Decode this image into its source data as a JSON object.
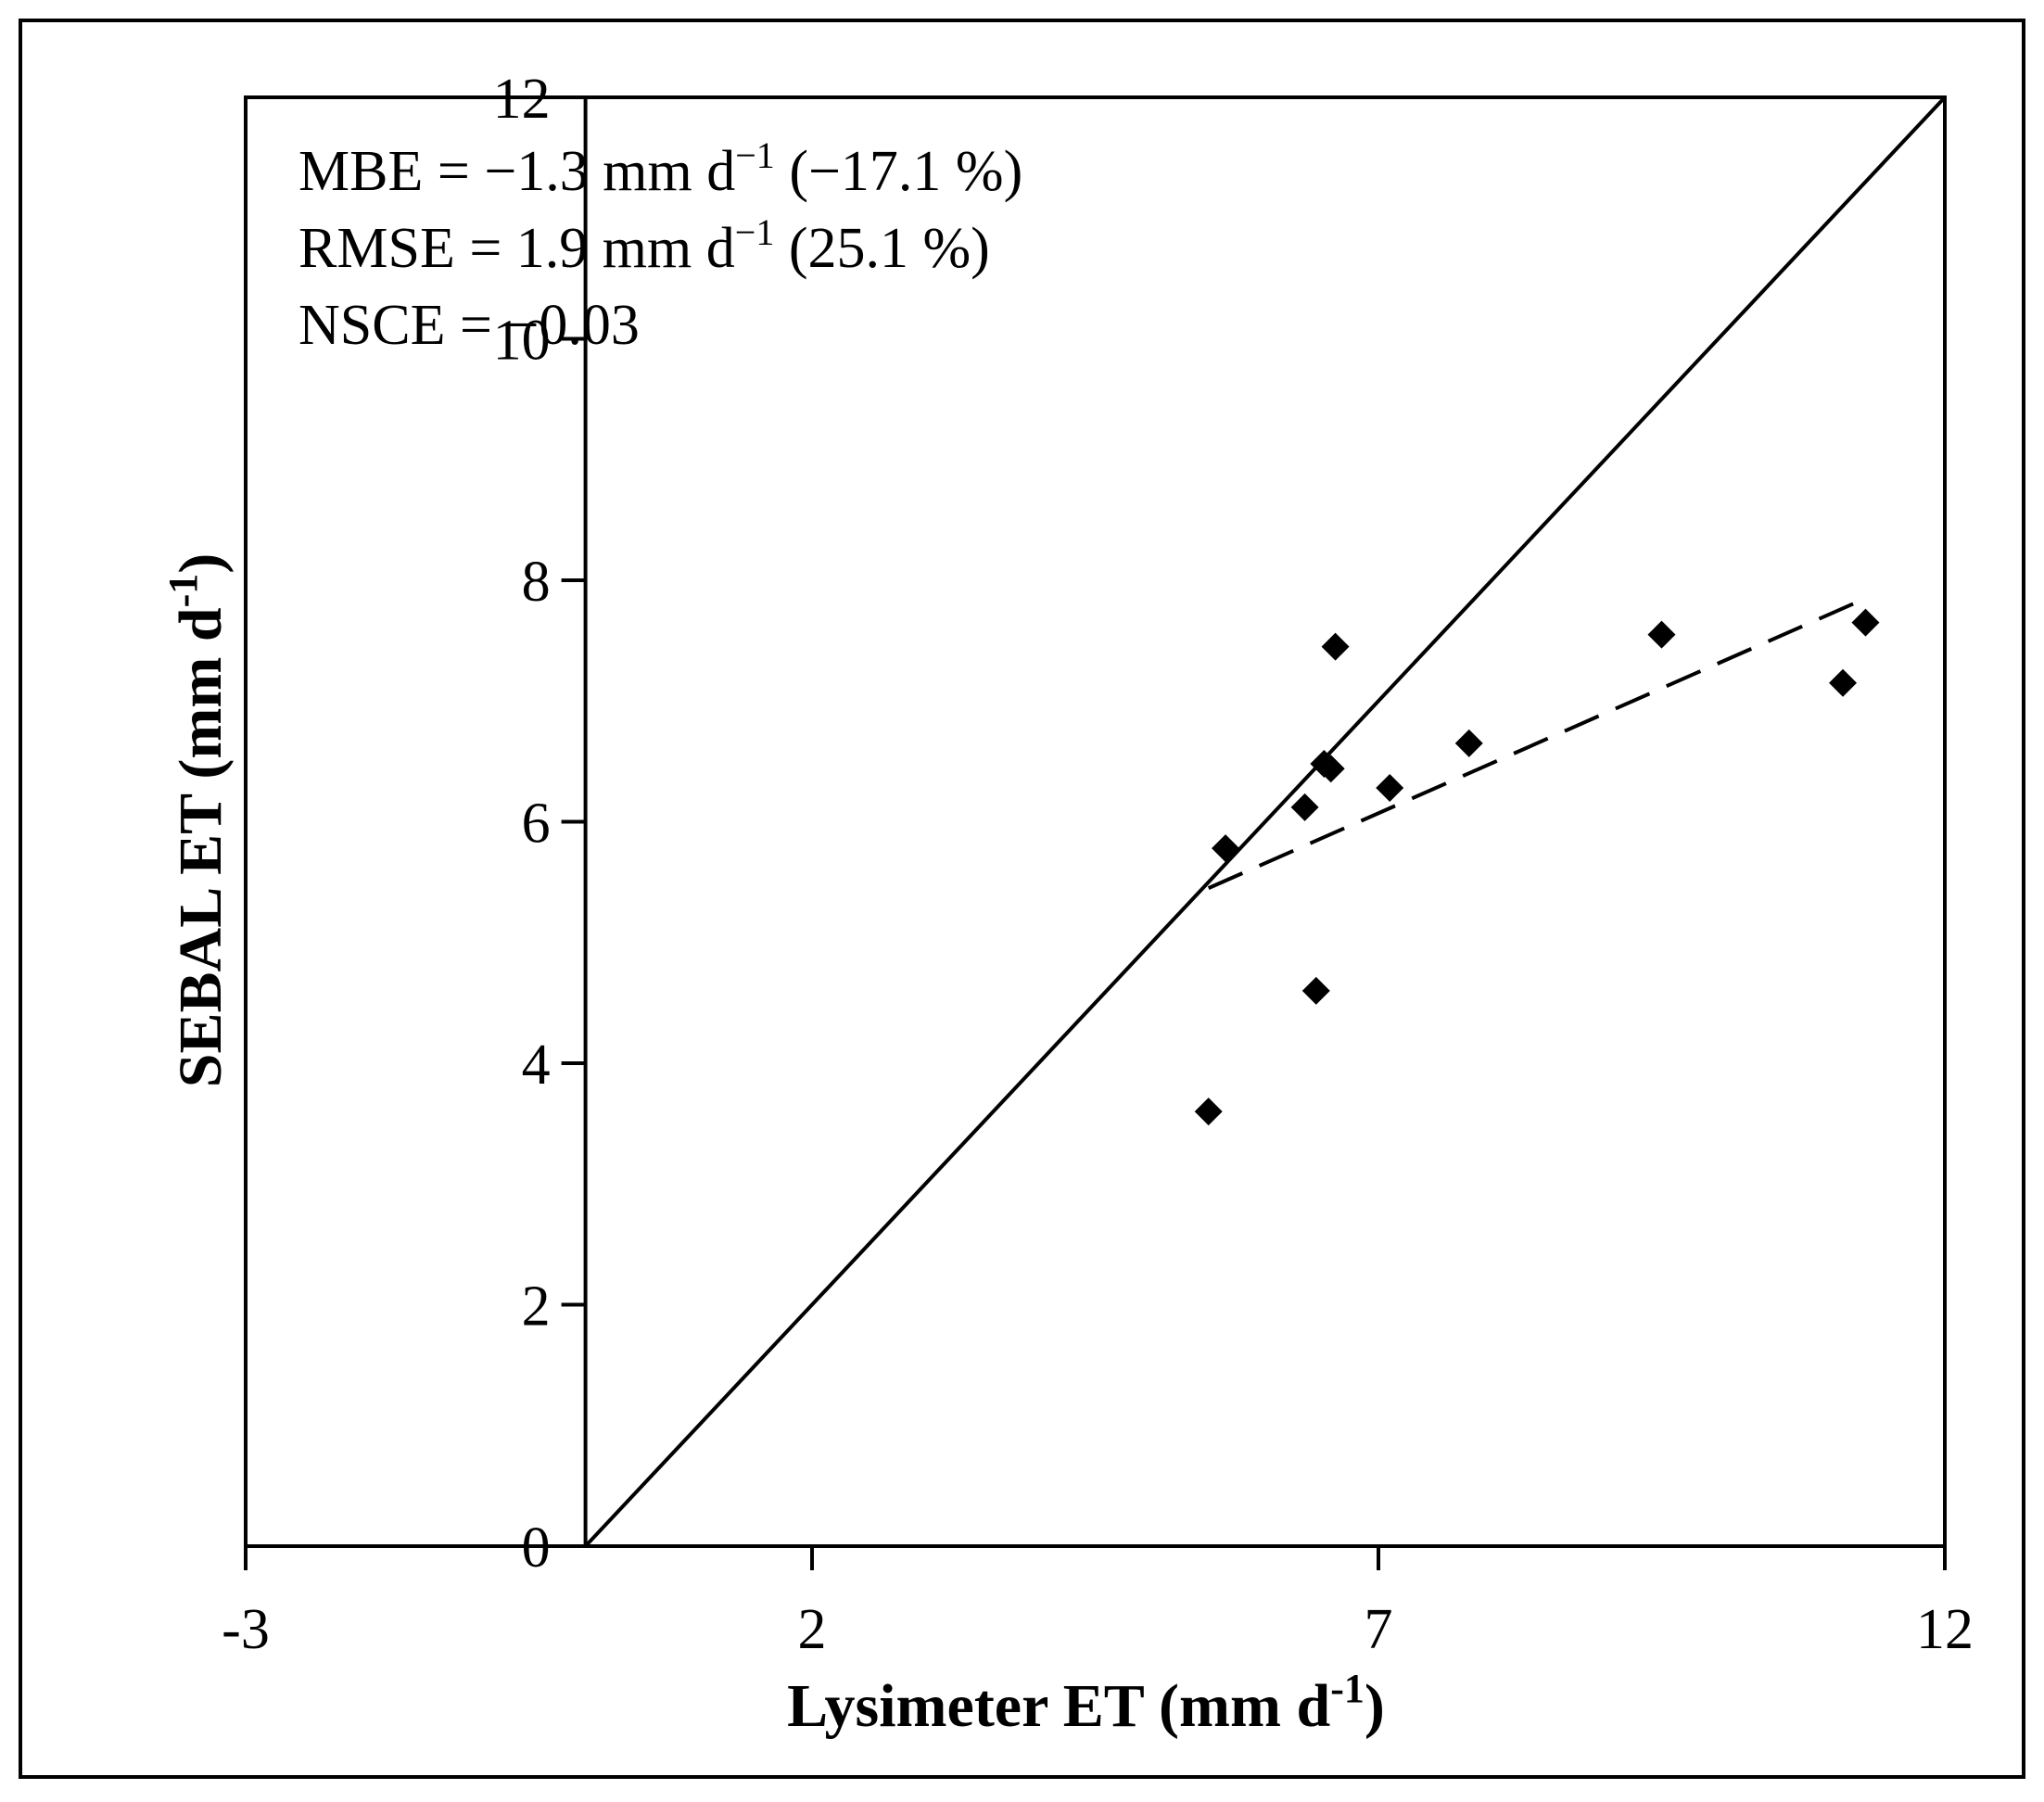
{
  "chart_data": {
    "type": "scatter",
    "title": "",
    "xlabel": "Lysimeter ET (mm d",
    "xlabel_sup": "-1",
    "xlabel_close": ")",
    "ylabel": "SEBAL ET (mm d",
    "ylabel_sup": "-1",
    "ylabel_close": ")",
    "xlim": [
      -3,
      12
    ],
    "ylim": [
      0,
      12
    ],
    "x_ticks": [
      -3,
      2,
      7,
      12
    ],
    "y_ticks": [
      0,
      2,
      4,
      6,
      8,
      10,
      12
    ],
    "x_tick_labels": [
      "-3",
      "2",
      "7",
      "12"
    ],
    "y_tick_labels": [
      "0",
      "2",
      "4",
      "6",
      "8",
      "10",
      "12"
    ],
    "grid": false,
    "legend": "none",
    "annotations": [
      {
        "pre": "MBE = −1.3 mm d",
        "sup": "−1",
        "post": " (−17.1 %)"
      },
      {
        "pre": "RMSE = 1.9 mm d",
        "sup": "−1",
        "post": " (25.1 %)"
      },
      {
        "pre": "NSCE = −0.03",
        "sup": "",
        "post": ""
      }
    ],
    "series": [
      {
        "marker": "diamond",
        "points": [
          {
            "x": 5.5,
            "y": 3.6
          },
          {
            "x": 5.65,
            "y": 5.78
          },
          {
            "x": 6.35,
            "y": 6.12
          },
          {
            "x": 6.45,
            "y": 4.6
          },
          {
            "x": 6.52,
            "y": 6.48
          },
          {
            "x": 6.58,
            "y": 6.44
          },
          {
            "x": 6.62,
            "y": 7.45
          },
          {
            "x": 7.1,
            "y": 6.28
          },
          {
            "x": 7.8,
            "y": 6.65
          },
          {
            "x": 9.5,
            "y": 7.55
          },
          {
            "x": 11.1,
            "y": 7.15
          },
          {
            "x": 11.3,
            "y": 7.65
          }
        ]
      }
    ],
    "lines": [
      {
        "style": "solid",
        "x": [
          0,
          12
        ],
        "y": [
          0,
          12
        ]
      },
      {
        "style": "dashed",
        "x": [
          5.5,
          11.3
        ],
        "y": [
          5.45,
          7.85
        ]
      }
    ],
    "colors": {
      "axis": "#000000",
      "marker": "#000000",
      "background": "#ffffff"
    }
  }
}
